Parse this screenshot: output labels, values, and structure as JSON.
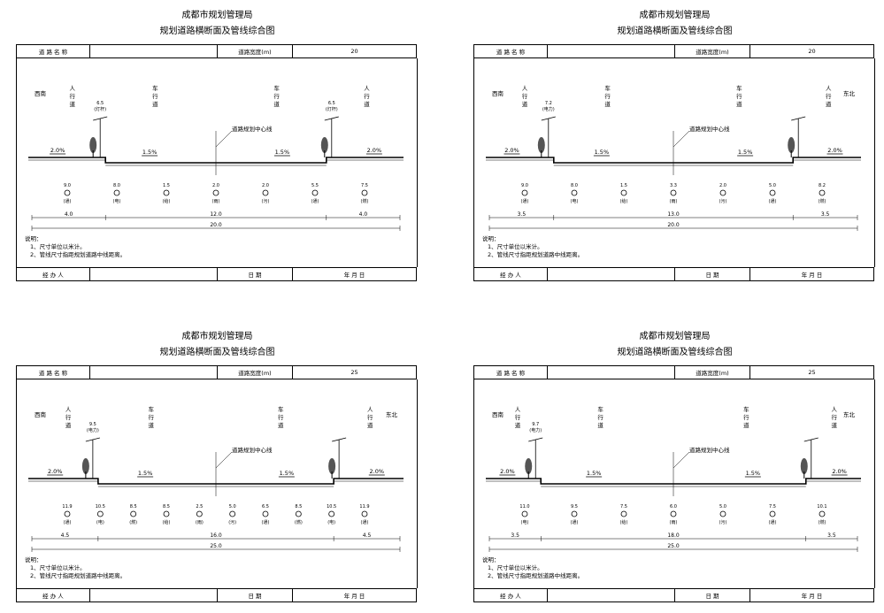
{
  "sheets": [
    {
      "title": "成都市规划管理局",
      "subtitle": "规划道路横断面及管线综合图",
      "header": {
        "road_name_label": "道 路 名 称",
        "road_name_value": "",
        "width_label": "道路宽度(m)",
        "width_value": "20"
      },
      "direction_left": "西南",
      "direction_right": "",
      "lane_labels": {
        "left_walk": [
          "人",
          "行",
          "道"
        ],
        "left_car": [
          "车",
          "行",
          "道"
        ],
        "right_car": [
          "车",
          "行",
          "道"
        ],
        "right_walk": [
          "人",
          "行",
          "道"
        ]
      },
      "centerline_label": "道路规划中心线",
      "slopes": [
        "2.0%",
        "1.5%",
        "1.5%",
        "2.0%"
      ],
      "lamp_labels": [
        "6.5",
        "(灯杆)",
        "6.5",
        "(灯杆)"
      ],
      "pipes": [
        {
          "value": "9.0",
          "label": "(通)"
        },
        {
          "value": "8.0",
          "label": "(电)"
        },
        {
          "value": "1.5",
          "label": "(给)"
        },
        {
          "value": "2.0",
          "label": "(雨)"
        },
        {
          "value": "2.0",
          "label": "(污)"
        },
        {
          "value": "5.5",
          "label": "(通)"
        },
        {
          "value": "7.5",
          "label": "(燃)"
        }
      ],
      "dims": [
        "4.0",
        "12.0",
        "4.0"
      ],
      "total": "20.0",
      "notes": [
        "说明：",
        "1、尺寸单位以米计。",
        "2、管线尺寸指距规划道路中线距离。"
      ],
      "footer": {
        "handler": "经 办 人",
        "date": "日    期",
        "ymd": "年    月    日"
      }
    },
    {
      "title": "成都市规划管理局",
      "subtitle": "规划道路横断面及管线综合图",
      "header": {
        "road_name_label": "道 路 名 称",
        "road_name_value": "",
        "width_label": "道路宽度(m)",
        "width_value": "20"
      },
      "direction_left": "西南",
      "direction_right": "东北",
      "lane_labels": {
        "left_walk": [
          "人",
          "行",
          "道"
        ],
        "left_car": [
          "车",
          "行",
          "道"
        ],
        "right_car": [
          "车",
          "行",
          "道"
        ],
        "right_walk": [
          "人",
          "行",
          "道"
        ]
      },
      "centerline_label": "道路规划中心线",
      "slopes": [
        "2.0%",
        "1.5%",
        "1.5%",
        "2.0%"
      ],
      "lamp_labels": [
        "7.2",
        "(电力)",
        "",
        ""
      ],
      "pipes": [
        {
          "value": "9.0",
          "label": "(通)"
        },
        {
          "value": "8.0",
          "label": "(电)"
        },
        {
          "value": "1.5",
          "label": "(给)"
        },
        {
          "value": "3.3",
          "label": "(雨)"
        },
        {
          "value": "2.0",
          "label": "(污)"
        },
        {
          "value": "5.0",
          "label": "(通)"
        },
        {
          "value": "8.2",
          "label": "(燃)"
        }
      ],
      "dims": [
        "3.5",
        "13.0",
        "3.5"
      ],
      "total": "20.0",
      "notes": [
        "说明：",
        "1、尺寸单位以米计。",
        "2、管线尺寸指距规划道路中线距离。"
      ],
      "footer": {
        "handler": "经 办 人",
        "date": "日    期",
        "ymd": "年    月    日"
      }
    },
    {
      "title": "成都市规划管理局",
      "subtitle": "规划道路横断面及管线综合图",
      "header": {
        "road_name_label": "道 路 名 称",
        "road_name_value": "",
        "width_label": "道路宽度(m)",
        "width_value": "25"
      },
      "direction_left": "西南",
      "direction_right": "东北",
      "lane_labels": {
        "left_walk": [
          "人",
          "行",
          "道"
        ],
        "left_car": [
          "车",
          "行",
          "道"
        ],
        "right_car": [
          "车",
          "行",
          "道"
        ],
        "right_walk": [
          "人",
          "行",
          "道"
        ]
      },
      "centerline_label": "道路规划中心线",
      "slopes": [
        "2.0%",
        "1.5%",
        "1.5%",
        "2.0%"
      ],
      "lamp_labels": [
        "9.5",
        "(电力)",
        "",
        ""
      ],
      "pipes": [
        {
          "value": "11.9",
          "label": "(通)"
        },
        {
          "value": "10.5",
          "label": "(电)"
        },
        {
          "value": "8.5",
          "label": "(燃)"
        },
        {
          "value": "8.5",
          "label": "(给)"
        },
        {
          "value": "2.5",
          "label": "(雨)"
        },
        {
          "value": "5.0",
          "label": "(污)"
        },
        {
          "value": "6.5",
          "label": "(通)"
        },
        {
          "value": "8.5",
          "label": "(燃)"
        },
        {
          "value": "10.5",
          "label": "(电)"
        },
        {
          "value": "11.9",
          "label": "(通)"
        }
      ],
      "dims": [
        "4.5",
        "16.0",
        "4.5"
      ],
      "total": "25.0",
      "notes": [
        "说明：",
        "1、尺寸单位以米计。",
        "2、管线尺寸指距规划道路中线距离。"
      ],
      "footer": {
        "handler": "经 办 人",
        "date": "日    期",
        "ymd": "年    月    日"
      }
    },
    {
      "title": "成都市规划管理局",
      "subtitle": "规划道路横断面及管线综合图",
      "header": {
        "road_name_label": "道 路 名 称",
        "road_name_value": "",
        "width_label": "道路宽度(m)",
        "width_value": "25"
      },
      "direction_left": "西南",
      "direction_right": "东北",
      "lane_labels": {
        "left_walk": [
          "人",
          "行",
          "道"
        ],
        "left_car": [
          "车",
          "行",
          "道"
        ],
        "right_car": [
          "车",
          "行",
          "道"
        ],
        "right_walk": [
          "人",
          "行",
          "道"
        ]
      },
      "centerline_label": "道路规划中心线",
      "slopes": [
        "2.0%",
        "1.5%",
        "1.5%",
        "2.0%"
      ],
      "lamp_labels": [
        "9.7",
        "(电力)",
        "",
        ""
      ],
      "pipes": [
        {
          "value": "11.0",
          "label": "(电)"
        },
        {
          "value": "9.5",
          "label": "(通)"
        },
        {
          "value": "7.5",
          "label": "(给)"
        },
        {
          "value": "6.0",
          "label": "(雨)"
        },
        {
          "value": "5.0",
          "label": "(污)"
        },
        {
          "value": "7.5",
          "label": "(通)"
        },
        {
          "value": "10.1",
          "label": "(燃)"
        }
      ],
      "dims": [
        "3.5",
        "18.0",
        "3.5"
      ],
      "total": "25.0",
      "notes": [
        "说明：",
        "1、尺寸单位以米计。",
        "2、管线尺寸指距规划道路中线距离。"
      ],
      "footer": {
        "handler": "经 办 人",
        "date": "日    期",
        "ymd": "年    月    日"
      }
    }
  ]
}
